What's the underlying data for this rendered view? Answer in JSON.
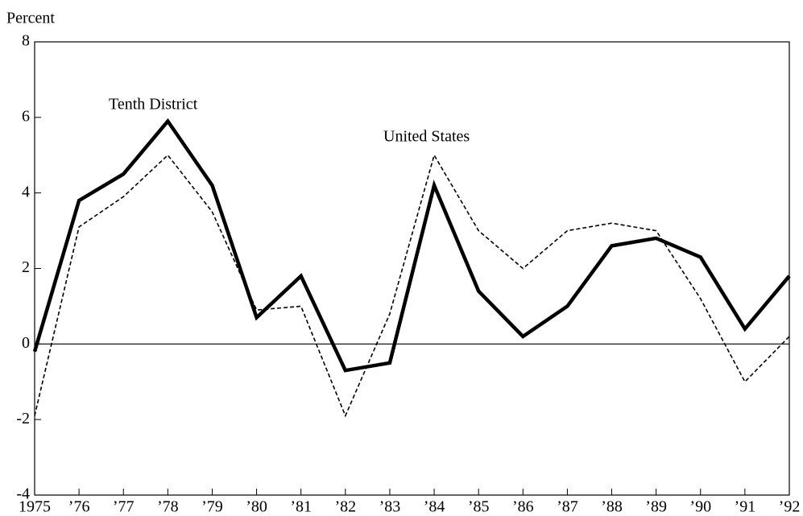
{
  "chart_data": {
    "type": "line",
    "y_label": "Percent",
    "categories": [
      "1975",
      "’76",
      "’77",
      "’78",
      "’79",
      "’80",
      "’81",
      "’82",
      "’83",
      "’84",
      "’85",
      "’86",
      "’87",
      "’88",
      "’89",
      "’90",
      "’91",
      "’92"
    ],
    "series": [
      {
        "name": "Tenth District",
        "color": "#000000",
        "style": "solid",
        "values": [
          -0.2,
          3.8,
          4.5,
          5.9,
          4.2,
          0.7,
          1.8,
          -0.7,
          -0.5,
          4.2,
          1.4,
          0.2,
          1.0,
          2.6,
          2.8,
          2.3,
          0.4,
          1.8
        ]
      },
      {
        "name": "United States",
        "color": "#000000",
        "style": "dashed",
        "values": [
          -1.9,
          3.1,
          3.9,
          5.0,
          3.5,
          0.9,
          1.0,
          -1.9,
          0.8,
          5.0,
          3.0,
          2.0,
          3.0,
          3.2,
          3.0,
          1.2,
          -1.0,
          0.2
        ]
      }
    ],
    "ylim": [
      -4,
      8
    ],
    "yticks": [
      -4,
      -2,
      0,
      2,
      4,
      6,
      8
    ],
    "grid": false
  }
}
